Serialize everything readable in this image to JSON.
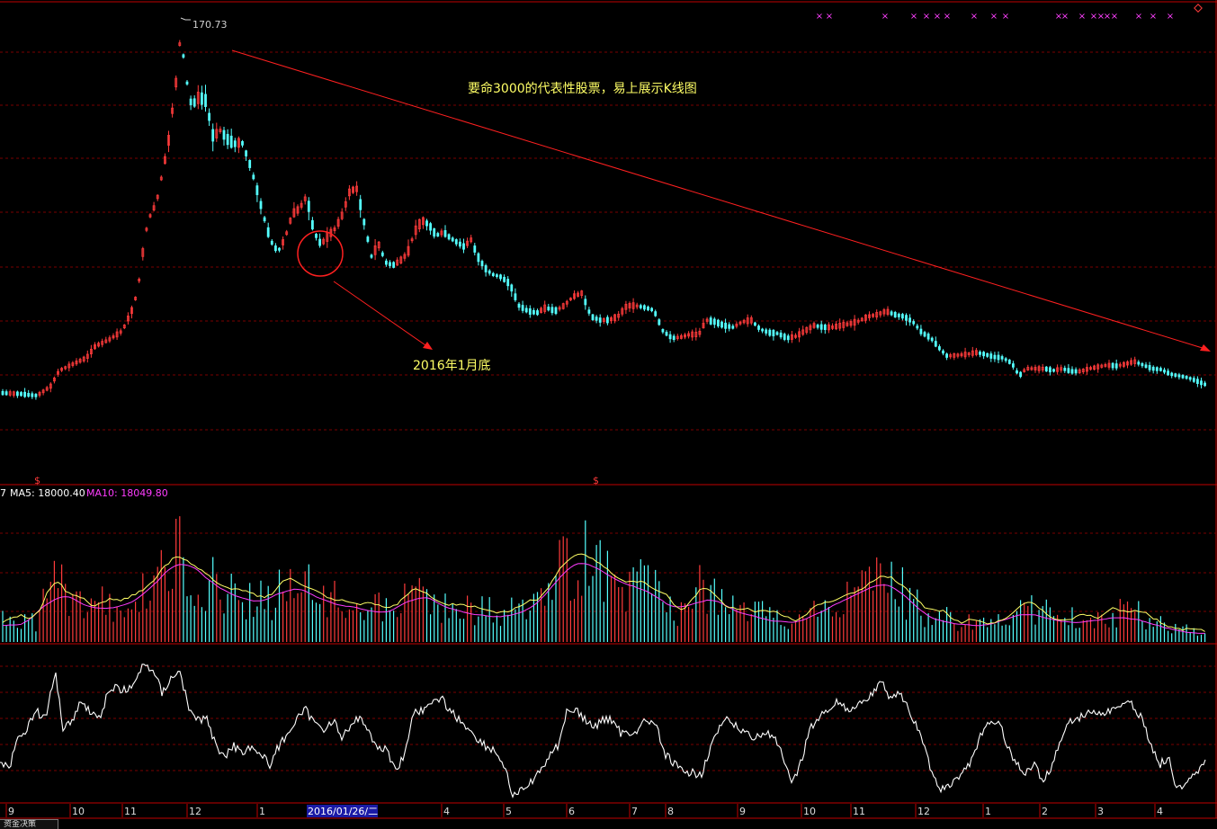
{
  "chart_data": {
    "type": "candlestick",
    "annotations": {
      "peak_label": "170.73",
      "headline": "要命3000的代表性股票，易上展示K线图",
      "bottom_note": "2016年1月底"
    },
    "volume_panel": {
      "prefix": "7",
      "ma5_label": "MA5: 18000.40",
      "ma10_label": "MA10: 18049.80"
    },
    "x_axis": {
      "tick_labels": [
        "9",
        "10",
        "11",
        "12",
        "1",
        "4",
        "5",
        "6",
        "7",
        "8",
        "9",
        "10",
        "11",
        "12",
        "1",
        "2",
        "3",
        "4"
      ],
      "cursor_date": "2016/01/26/二"
    },
    "bottom_tab_label": "资金决策",
    "colors": {
      "up": "#ff3b3b",
      "down": "#54ffff",
      "ma5": "#ffff66",
      "ma10": "#ff3cff",
      "indicator": "#ffffff",
      "annotation": "#ffff66",
      "trendline": "#ff2020",
      "panel_border": "#c00000",
      "grid": "#7a0000",
      "signal_marks": "#ff40ff"
    },
    "signal_mark_count": 20,
    "icons": [
      "dollar-marker-icon",
      "diamond-icon"
    ]
  }
}
